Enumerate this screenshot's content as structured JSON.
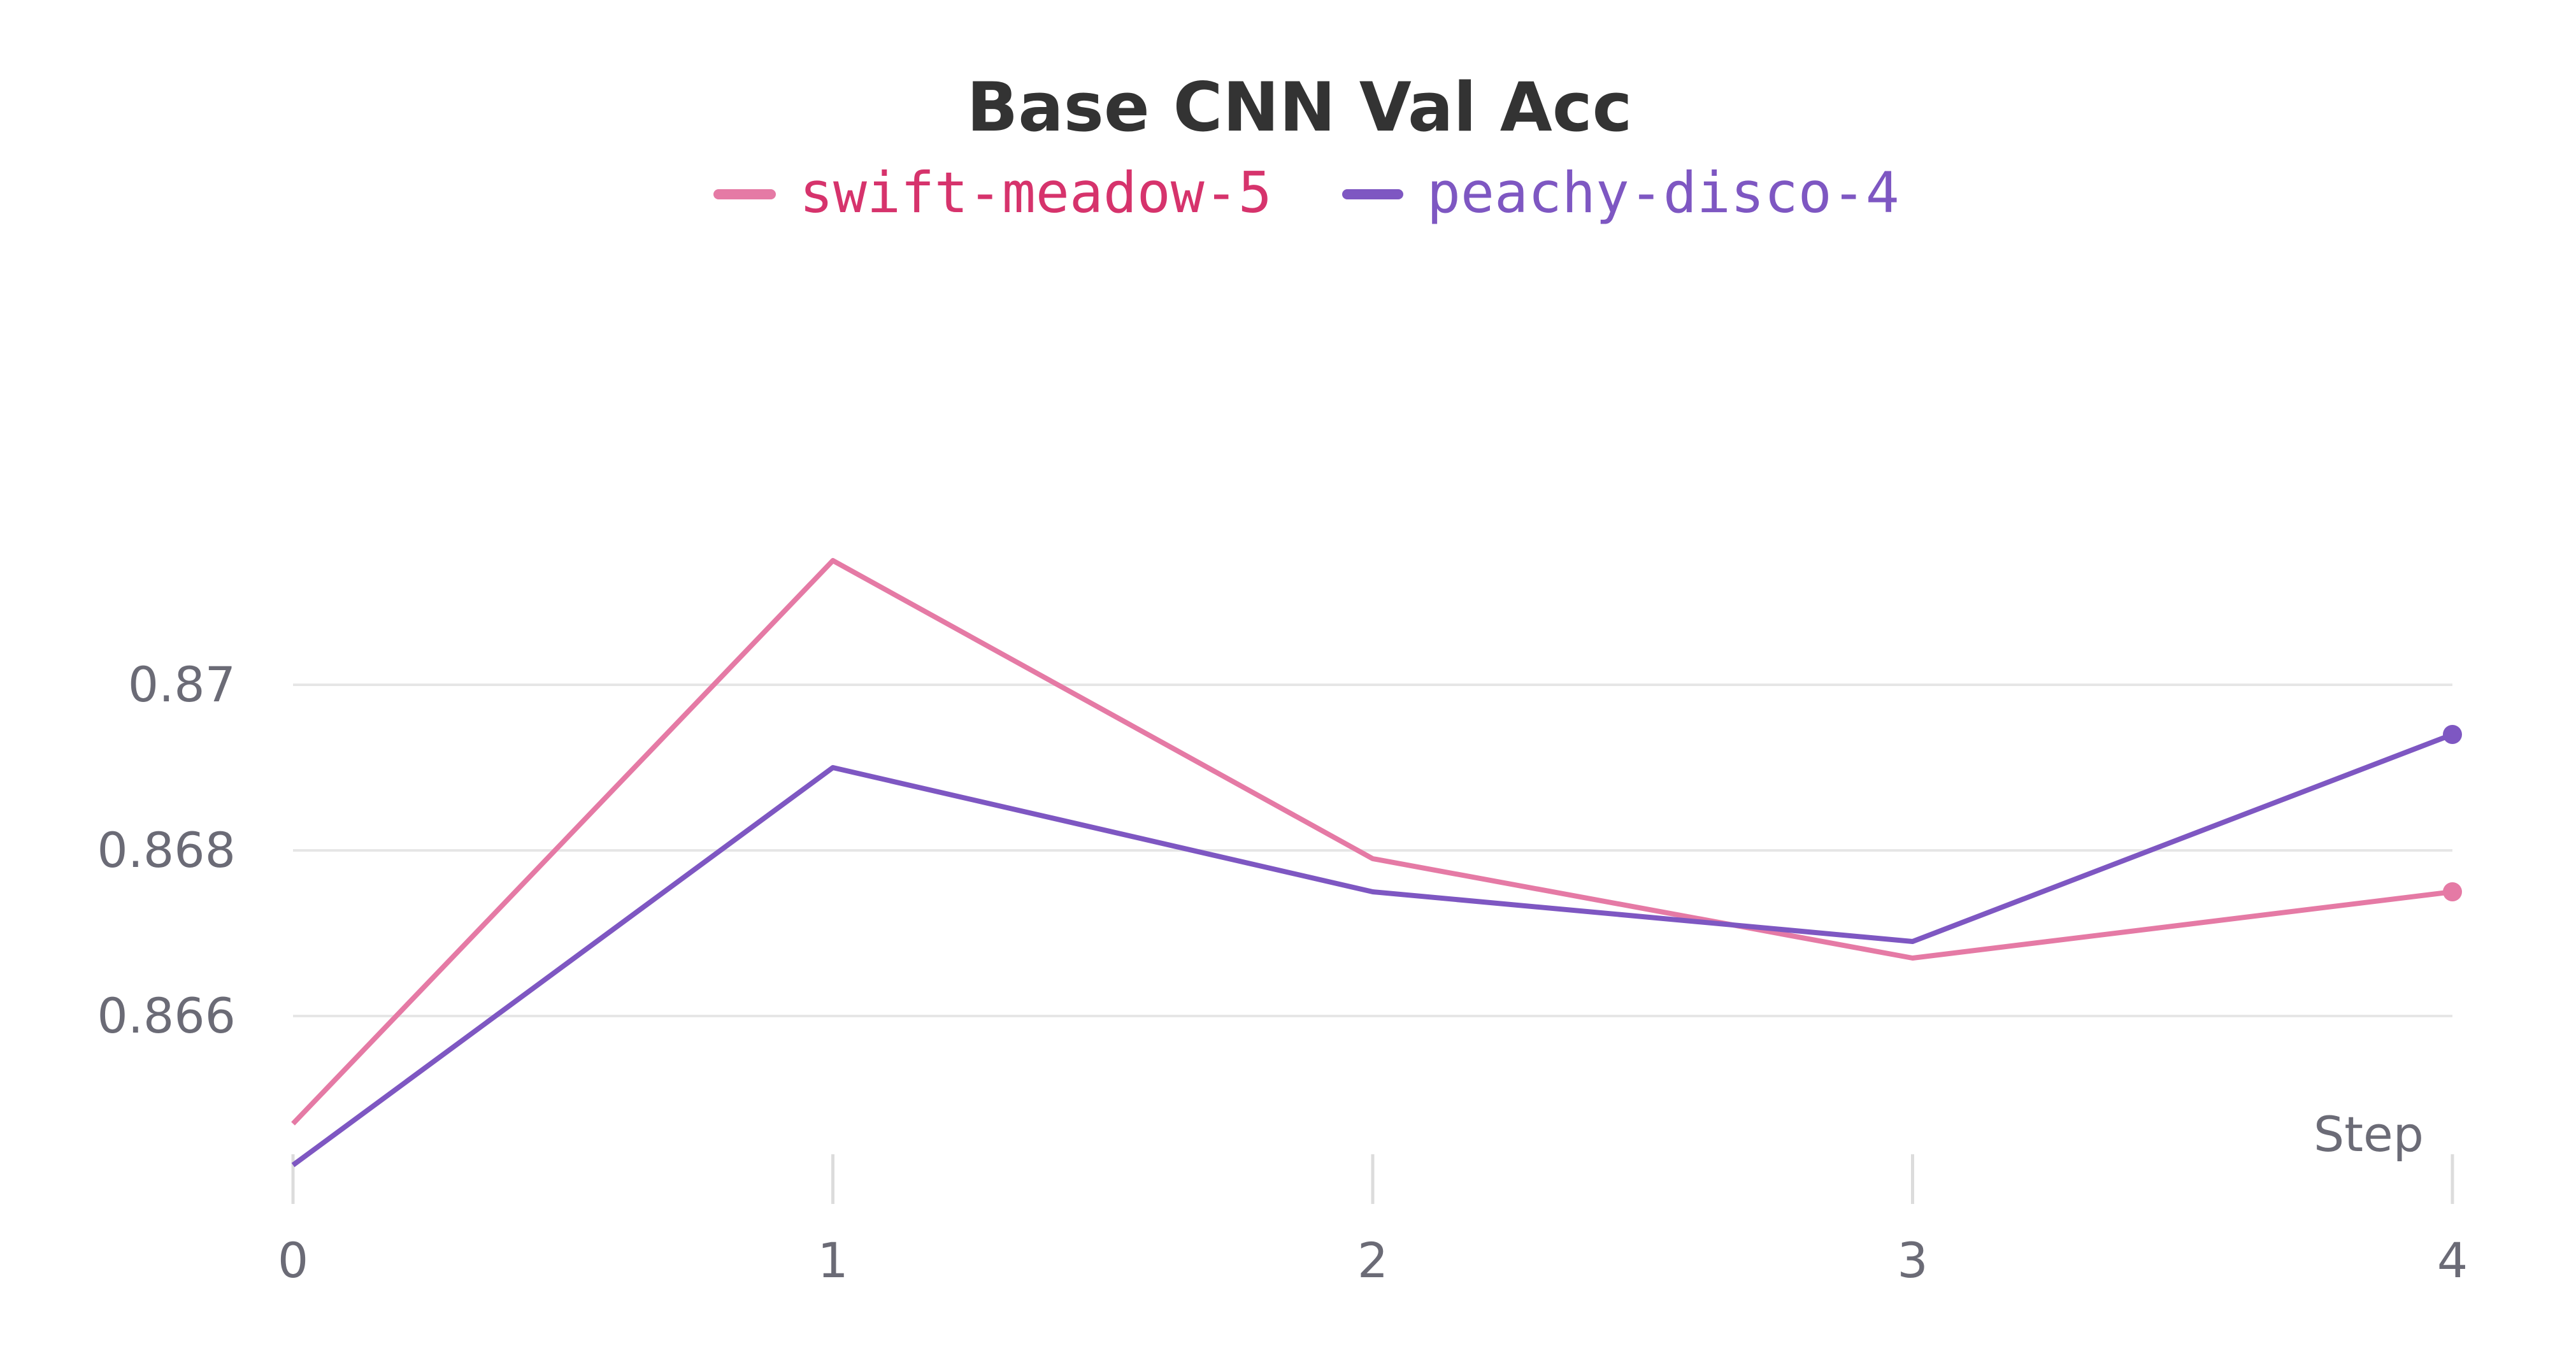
{
  "chart_data": {
    "type": "line",
    "title": "Base CNN Val Acc",
    "xlabel": "Step",
    "ylabel": "",
    "x": [
      0,
      1,
      2,
      3,
      4
    ],
    "xlim": [
      0,
      4
    ],
    "ylim": [
      0.864,
      0.8755
    ],
    "x_ticks": [
      "0",
      "1",
      "2",
      "3",
      "4"
    ],
    "y_ticks": [
      {
        "value": 0.866,
        "label": "0.866"
      },
      {
        "value": 0.868,
        "label": "0.868"
      },
      {
        "value": 0.87,
        "label": "0.87"
      }
    ],
    "grid": "horizontal",
    "legend_position": "top-center",
    "series": [
      {
        "name": "swift-meadow-5",
        "color": "#e57aa5",
        "label_color": "#d6336c",
        "values": [
          0.8647,
          0.8715,
          0.8679,
          0.8667,
          0.8675
        ]
      },
      {
        "name": "peachy-disco-4",
        "color": "#7e57c2",
        "label_color": "#7e57c2",
        "values": [
          0.8642,
          0.869,
          0.8675,
          0.8669,
          0.8694
        ]
      }
    ]
  }
}
